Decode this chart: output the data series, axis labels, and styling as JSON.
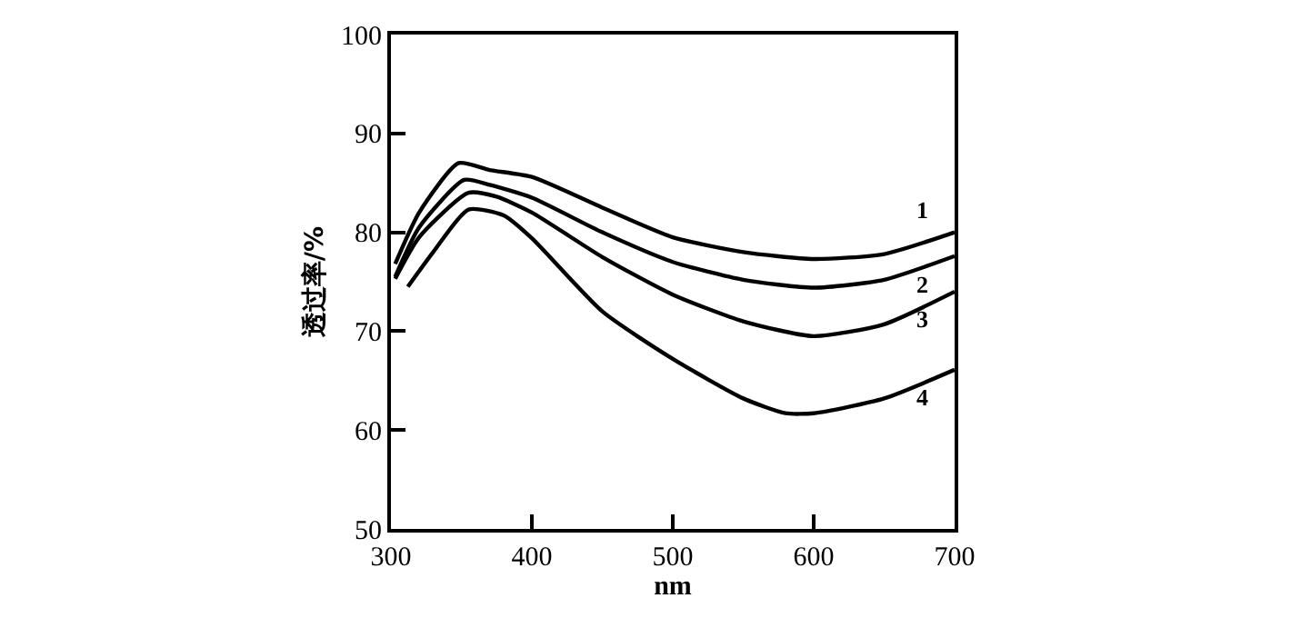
{
  "chart_data": {
    "type": "line",
    "xlabel": "nm",
    "ylabel": "透过率/%",
    "xlim": [
      300,
      700
    ],
    "xticks": [
      300,
      400,
      500,
      600,
      700
    ],
    "ylim": [
      50,
      100
    ],
    "yticks": [
      50,
      60,
      70,
      80,
      90,
      100
    ],
    "grid": false,
    "legend": false,
    "marker": "none",
    "line_style": "solid",
    "series": [
      {
        "name": "1",
        "color": "#000000",
        "x": [
          303,
          320,
          348,
          370,
          400,
          450,
          500,
          550,
          600,
          650,
          700
        ],
        "values": [
          76.8,
          82,
          87,
          86.3,
          85.6,
          82.5,
          79.5,
          78,
          77.3,
          77.8,
          80
        ]
      },
      {
        "name": "2",
        "color": "#000000",
        "x": [
          303,
          320,
          352,
          370,
          400,
          450,
          500,
          550,
          600,
          650,
          700
        ],
        "values": [
          75.5,
          80.5,
          85.3,
          84.8,
          83.5,
          80,
          77,
          75.2,
          74.4,
          75.2,
          77.6
        ]
      },
      {
        "name": "3",
        "color": "#000000",
        "x": [
          303,
          320,
          355,
          375,
          400,
          450,
          500,
          550,
          600,
          650,
          700
        ],
        "values": [
          75.3,
          79.5,
          84,
          83.6,
          82,
          77.5,
          73.7,
          71,
          69.5,
          70.7,
          74
        ]
      },
      {
        "name": "4",
        "color": "#000000",
        "x": [
          312,
          330,
          355,
          380,
          400,
          450,
          500,
          550,
          580,
          600,
          650,
          700
        ],
        "values": [
          74.5,
          78,
          82.3,
          81.7,
          79.4,
          72,
          67.2,
          63.2,
          61.7,
          61.7,
          63.2,
          66.1
        ]
      }
    ]
  }
}
